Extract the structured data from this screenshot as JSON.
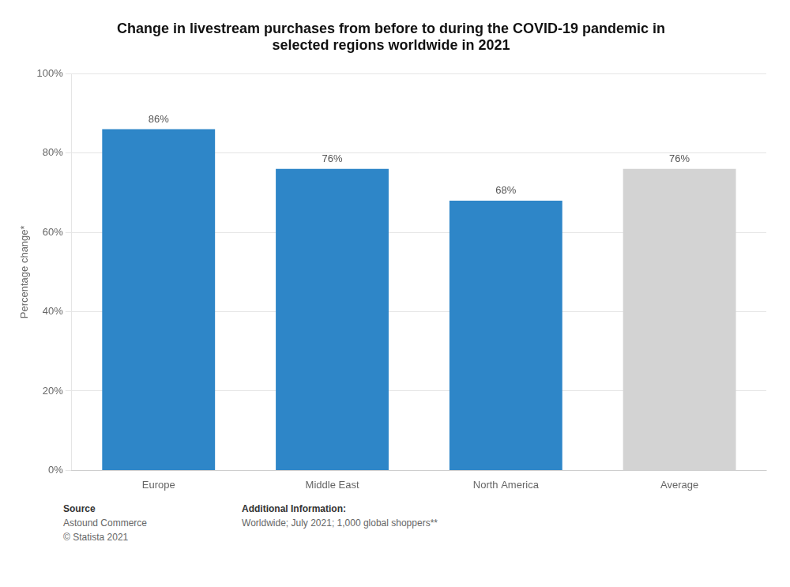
{
  "chart_data": {
    "type": "bar",
    "title": "Change in livestream purchases from before to during the COVID-19 pandemic in\nselected regions worldwide in 2021",
    "categories": [
      "Europe",
      "Middle East",
      "North America",
      "Average"
    ],
    "values": [
      86,
      76,
      68,
      76
    ],
    "colors": [
      "#2E86C8",
      "#2E86C8",
      "#2E86C8",
      "#D3D3D3"
    ],
    "ylabel": "Percentage change*",
    "ylim": [
      0,
      100
    ],
    "yticks": [
      {
        "value": 0,
        "label": "0%"
      },
      {
        "value": 20,
        "label": "20%"
      },
      {
        "value": 40,
        "label": "40%"
      },
      {
        "value": 60,
        "label": "60%"
      },
      {
        "value": 80,
        "label": "80%"
      },
      {
        "value": 100,
        "label": "100%"
      }
    ],
    "grid": true,
    "data_labels": true,
    "value_labels": [
      "86%",
      "76%",
      "68%",
      "76%"
    ],
    "annotations": [
      {
        "title": "Source",
        "text": "Astound Commerce\n© Statista 2021"
      },
      {
        "title": "Additional Information:",
        "text": "Worldwide; July 2021; 1,000 global shoppers**"
      }
    ]
  }
}
